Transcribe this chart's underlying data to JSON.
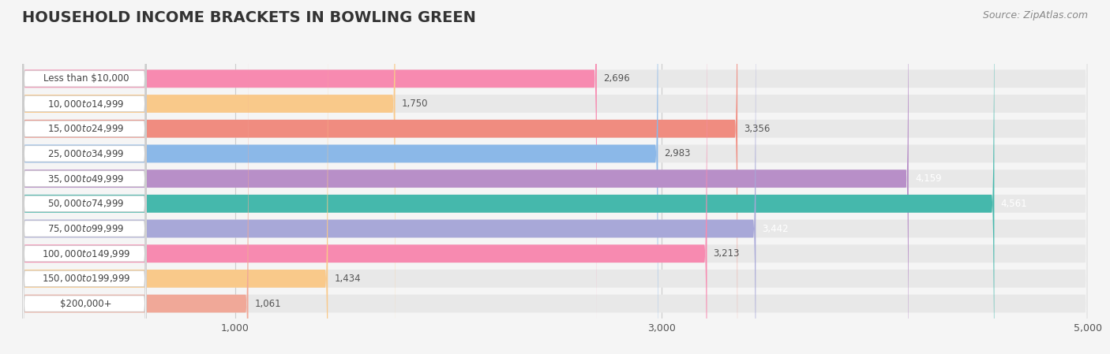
{
  "title": "HOUSEHOLD INCOME BRACKETS IN BOWLING GREEN",
  "source": "Source: ZipAtlas.com",
  "categories": [
    "Less than $10,000",
    "$10,000 to $14,999",
    "$15,000 to $24,999",
    "$25,000 to $34,999",
    "$35,000 to $49,999",
    "$50,000 to $74,999",
    "$75,000 to $99,999",
    "$100,000 to $149,999",
    "$150,000 to $199,999",
    "$200,000+"
  ],
  "values": [
    2696,
    1750,
    3356,
    2983,
    4159,
    4561,
    3442,
    3213,
    1434,
    1061
  ],
  "bar_colors": [
    "#F78AB0",
    "#F9C98A",
    "#F08C80",
    "#8BB8E8",
    "#B88FC8",
    "#45B8AC",
    "#A8A8D8",
    "#F78AB0",
    "#F9C98A",
    "#F0A898"
  ],
  "label_colors": [
    "#555555",
    "#555555",
    "#555555",
    "#555555",
    "#ffffff",
    "#ffffff",
    "#ffffff",
    "#555555",
    "#555555",
    "#555555"
  ],
  "xlim": [
    0,
    5000
  ],
  "xticks": [
    1000,
    3000,
    5000
  ],
  "background_color": "#f5f5f5",
  "bar_background": "#e8e8e8",
  "title_fontsize": 14,
  "source_fontsize": 9,
  "label_fontsize": 9,
  "ylabel_fontsize": 9
}
